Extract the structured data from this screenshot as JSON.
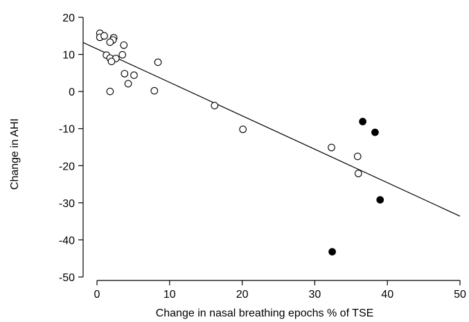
{
  "chart_data": {
    "type": "scatter",
    "xlabel": "Change in nasal breathing epochs % of TSE",
    "ylabel": "Change in AHI",
    "xlim": [
      0,
      50
    ],
    "ylim": [
      -50,
      20
    ],
    "x_ticks": [
      0,
      10,
      20,
      30,
      40,
      50
    ],
    "y_ticks": [
      20,
      10,
      0,
      -10,
      -20,
      -30,
      -40,
      -50
    ],
    "grid": false,
    "legend": "none",
    "series": [
      {
        "marker": "open-circle",
        "color": "#000000",
        "points": [
          {
            "x": 0.4,
            "y": 15.7
          },
          {
            "x": 0.4,
            "y": 14.6
          },
          {
            "x": 1.0,
            "y": 15.0
          },
          {
            "x": 2.3,
            "y": 14.5
          },
          {
            "x": 2.2,
            "y": 13.9
          },
          {
            "x": 1.8,
            "y": 13.3
          },
          {
            "x": 3.7,
            "y": 12.5
          },
          {
            "x": 1.3,
            "y": 9.8
          },
          {
            "x": 1.8,
            "y": 9.0
          },
          {
            "x": 2.6,
            "y": 8.9
          },
          {
            "x": 3.5,
            "y": 9.9
          },
          {
            "x": 2.0,
            "y": 8.1
          },
          {
            "x": 8.4,
            "y": 7.9
          },
          {
            "x": 3.8,
            "y": 4.8
          },
          {
            "x": 5.1,
            "y": 4.4
          },
          {
            "x": 4.3,
            "y": 2.1
          },
          {
            "x": 1.8,
            "y": 0.0
          },
          {
            "x": 7.9,
            "y": 0.2
          },
          {
            "x": 16.2,
            "y": -3.8
          },
          {
            "x": 20.1,
            "y": -10.2
          },
          {
            "x": 32.3,
            "y": -15.1
          },
          {
            "x": 35.9,
            "y": -17.5
          },
          {
            "x": 36.0,
            "y": -22.1
          }
        ]
      },
      {
        "marker": "filled-circle",
        "color": "#000000",
        "points": [
          {
            "x": 36.6,
            "y": -8.1
          },
          {
            "x": 38.3,
            "y": -11.0
          },
          {
            "x": 39.0,
            "y": -29.2
          },
          {
            "x": 32.4,
            "y": -43.2
          }
        ]
      }
    ],
    "regression_line": {
      "x": [
        -1.7,
        50
      ],
      "y": [
        13.2,
        -33.6
      ]
    }
  }
}
